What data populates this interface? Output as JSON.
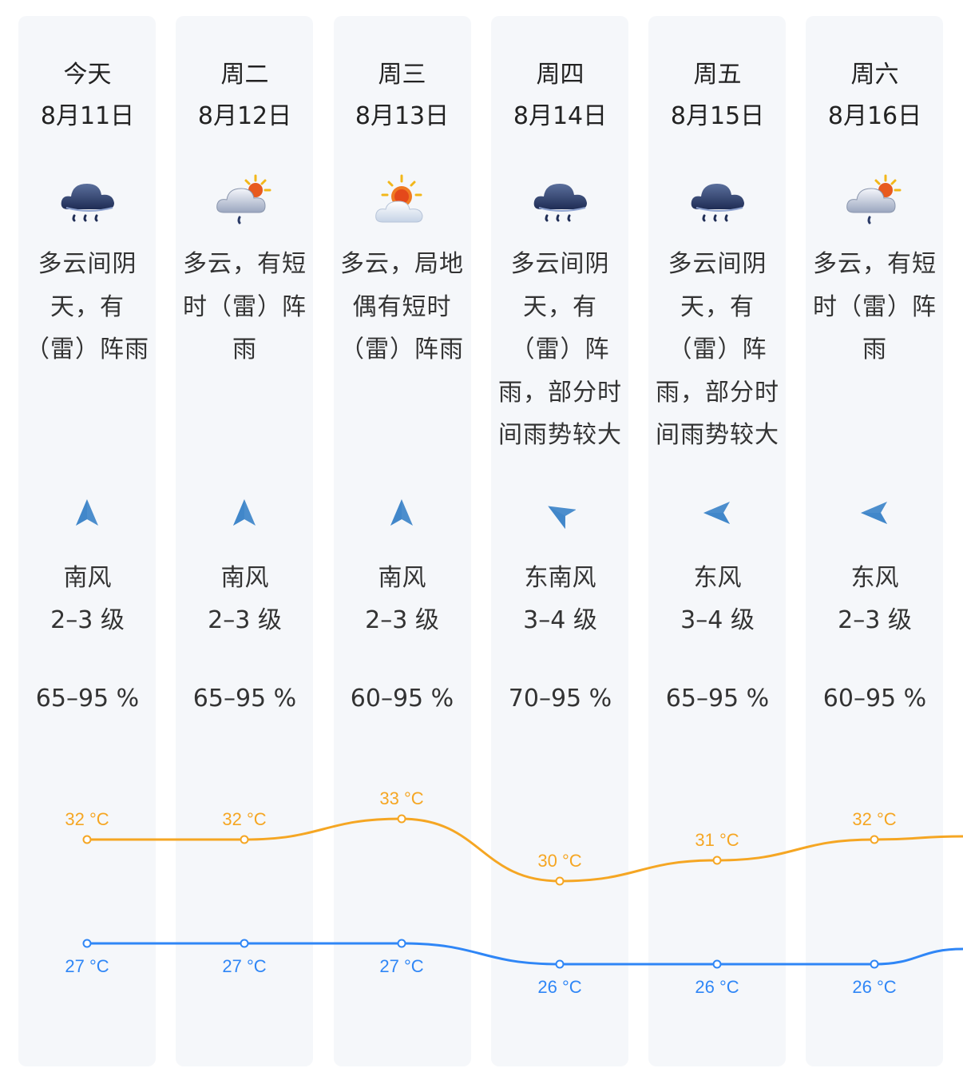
{
  "days": [
    {
      "weekday": "今天",
      "date": "8月11日",
      "icon": "heavy-cloud-rain-icon",
      "desc": "多云间阴天，有（雷）阵雨",
      "wind_dir": "南风",
      "wind_level": "2–3 级",
      "humidity": "65–95 %",
      "wind_arrow": "arrow-up-icon"
    },
    {
      "weekday": "周二",
      "date": "8月12日",
      "icon": "sun-cloud-rain-icon",
      "desc": "多云，有短时（雷）阵雨",
      "wind_dir": "南风",
      "wind_level": "2–3 级",
      "humidity": "65–95 %",
      "wind_arrow": "arrow-up-icon"
    },
    {
      "weekday": "周三",
      "date": "8月13日",
      "icon": "sun-cloud-icon",
      "desc": "多云，局地偶有短时（雷）阵雨",
      "wind_dir": "南风",
      "wind_level": "2–3 级",
      "humidity": "60–95 %",
      "wind_arrow": "arrow-up-icon"
    },
    {
      "weekday": "周四",
      "date": "8月14日",
      "icon": "heavy-cloud-rain-icon",
      "desc": "多云间阴天，有（雷）阵雨，部分时间雨势较大",
      "wind_dir": "东南风",
      "wind_level": "3–4 级",
      "humidity": "70–95 %",
      "wind_arrow": "arrow-up-left-icon"
    },
    {
      "weekday": "周五",
      "date": "8月15日",
      "icon": "heavy-cloud-rain-icon",
      "desc": "多云间阴天，有（雷）阵雨，部分时间雨势较大",
      "wind_dir": "东风",
      "wind_level": "3–4 级",
      "humidity": "65–95 %",
      "wind_arrow": "arrow-left-icon"
    },
    {
      "weekday": "周六",
      "date": "8月16日",
      "icon": "sun-cloud-rain-icon",
      "desc": "多云，有短时（雷）阵雨",
      "wind_dir": "东风",
      "wind_level": "2–3 级",
      "humidity": "60–95 %",
      "wind_arrow": "arrow-left-icon"
    }
  ],
  "chart_data": {
    "type": "line",
    "categories": [
      "8月11日",
      "8月12日",
      "8月13日",
      "8月14日",
      "8月15日",
      "8月16日"
    ],
    "series": [
      {
        "values": [
          32,
          32,
          33,
          30,
          31,
          32
        ],
        "color": "#f5a623"
      },
      {
        "values": [
          27,
          27,
          27,
          26,
          26,
          26
        ],
        "color": "#2f86f6"
      }
    ],
    "unit": "°C"
  },
  "colors": {
    "high": "#f5a623",
    "low": "#2f86f6",
    "card": "#f5f7fa",
    "wind_arrow": "#3a82c8"
  }
}
